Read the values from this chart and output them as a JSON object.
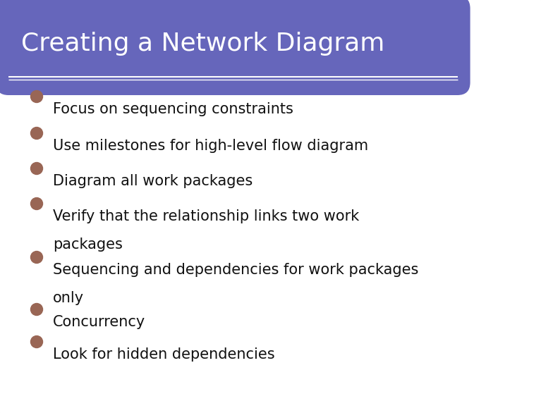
{
  "title": "Creating a Network Diagram",
  "title_color": "#ffffff",
  "title_bg_color": "#6666bb",
  "title_fontsize": 26,
  "title_fontweight": "normal",
  "bullet_color": "#996655",
  "bullet_text_color": "#111111",
  "bullet_fontsize": 15,
  "bg_color": "#ffffff",
  "border_color": "#7799aa",
  "border_linewidth": 3,
  "bullets": [
    "Focus on sequencing constraints",
    "Use milestones for high-level flow diagram",
    "Diagram all work packages",
    "Verify that the relationship links two work\npackages",
    "Sequencing and dependencies for work packages\nonly",
    "Concurrency",
    "Look for hidden dependencies"
  ],
  "figwidth": 7.67,
  "figheight": 5.86,
  "dpi": 100
}
